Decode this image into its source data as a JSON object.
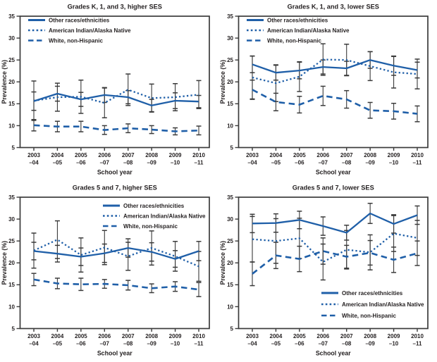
{
  "colors": {
    "series_blue": "#1F5FA8",
    "error_bar": "#3A3A3A",
    "frame": "#3B3B3B",
    "text": "#231F20",
    "background": "#FFFFFF"
  },
  "legend": {
    "items": [
      {
        "label": "Other races/ethnicities",
        "style": "solid"
      },
      {
        "label": "American Indian/Alaska Native",
        "style": "dotted"
      },
      {
        "label": "White, non-Hispanic",
        "style": "dashed"
      }
    ]
  },
  "axis": {
    "y_label": "Prevalence (%)",
    "x_label": "School year",
    "y_ticks": [
      5,
      10,
      15,
      20,
      25,
      30,
      35
    ],
    "ylim": [
      5,
      35
    ]
  },
  "chart_data": [
    {
      "type": "line",
      "title": "Grades K, 1, and 3, higher SES",
      "xlabel": "School year",
      "ylabel": "Prevalence (%)",
      "ylim": [
        5,
        35
      ],
      "grid": false,
      "legend_pos": "top-left",
      "categories": [
        "2003–04",
        "2004–05",
        "2005–06",
        "2006–07",
        "2007–08",
        "2008–09",
        "2009–10",
        "2010–11"
      ],
      "series": [
        {
          "name": "Other races/ethnicities",
          "id": "other-races",
          "style": "solid",
          "values": [
            15.6,
            17.3,
            16.0,
            17.0,
            16.5,
            14.6,
            15.7,
            15.5
          ],
          "err": [
            2.1,
            1.7,
            1.6,
            1.7,
            1.5,
            1.4,
            1.8,
            1.4
          ]
        },
        {
          "name": "American Indian/Alaska Native",
          "id": "ai-an",
          "style": "dotted",
          "values": [
            15.7,
            16.5,
            16.6,
            15.2,
            18.2,
            16.3,
            16.5,
            17.1
          ],
          "err": [
            4.5,
            3.2,
            3.8,
            3.4,
            3.6,
            3.2,
            3.1,
            3.2
          ]
        },
        {
          "name": "White, non-Hispanic",
          "id": "white-nh",
          "style": "dashed",
          "values": [
            10.1,
            9.8,
            9.8,
            9.0,
            9.4,
            9.1,
            8.7,
            8.9
          ],
          "err": [
            1.3,
            1.2,
            1.2,
            1.0,
            1.0,
            0.9,
            0.8,
            1.0
          ]
        }
      ]
    },
    {
      "type": "line",
      "title": "Grades K, 1, and 3, lower SES",
      "xlabel": "School year",
      "ylabel": "Prevalence (%)",
      "ylim": [
        5,
        35
      ],
      "grid": false,
      "legend_pos": "top-left",
      "categories": [
        "2003–04",
        "2004–05",
        "2005–06",
        "2006–07",
        "2007–08",
        "2008–09",
        "2009–10",
        "2010–11"
      ],
      "series": [
        {
          "name": "Other races/ethnicities",
          "id": "other-races",
          "style": "solid",
          "values": [
            24.0,
            22.1,
            22.6,
            23.4,
            23.1,
            25.0,
            23.7,
            22.7
          ],
          "err": [
            1.9,
            1.7,
            1.9,
            1.6,
            1.6,
            1.9,
            2.2,
            1.8
          ]
        },
        {
          "name": "American Indian/Alaska Native",
          "id": "ai-an",
          "style": "dotted",
          "values": [
            21.0,
            19.7,
            21.2,
            25.1,
            25.0,
            23.6,
            22.2,
            21.8
          ],
          "err": [
            4.9,
            4.2,
            3.4,
            3.6,
            3.6,
            3.3,
            3.6,
            3.4
          ]
        },
        {
          "name": "White, non-Hispanic",
          "id": "white-nh",
          "style": "dashed",
          "values": [
            18.2,
            15.4,
            14.8,
            16.8,
            16.0,
            13.5,
            13.3,
            12.7
          ],
          "err": [
            2.2,
            2.0,
            1.9,
            2.2,
            2.0,
            1.8,
            1.8,
            1.8
          ]
        }
      ]
    },
    {
      "type": "line",
      "title": "Grades 5 and 7, higher SES",
      "xlabel": "School year",
      "ylabel": "Prevalence (%)",
      "ylim": [
        5,
        35
      ],
      "grid": false,
      "legend_pos": "top-right",
      "categories": [
        "2003–04",
        "2004–05",
        "2005–06",
        "2006–07",
        "2007–08",
        "2008–09",
        "2009–10",
        "2010–11"
      ],
      "series": [
        {
          "name": "Other races/ethnicities",
          "id": "other-races",
          "style": "solid",
          "values": [
            22.7,
            22.1,
            21.4,
            22.2,
            23.4,
            22.5,
            20.9,
            22.7
          ],
          "err": [
            2.0,
            1.9,
            2.0,
            2.1,
            2.1,
            2.1,
            1.9,
            2.2
          ]
        },
        {
          "name": "American Indian/Alaska Native",
          "id": "ai-an",
          "style": "dotted",
          "values": [
            22.8,
            25.3,
            21.8,
            23.5,
            21.5,
            23.4,
            21.5,
            19.2
          ],
          "err": [
            4.0,
            4.3,
            3.9,
            3.9,
            3.2,
            3.9,
            3.4,
            3.4
          ]
        },
        {
          "name": "White, non-Hispanic",
          "id": "white-nh",
          "style": "dashed",
          "values": [
            16.2,
            15.3,
            15.1,
            15.2,
            14.9,
            14.2,
            14.6,
            13.9
          ],
          "err": [
            1.4,
            1.2,
            1.4,
            1.0,
            1.1,
            1.0,
            1.1,
            1.6
          ]
        }
      ]
    },
    {
      "type": "line",
      "title": "Grades 5 and 7, lower SES",
      "xlabel": "School year",
      "ylabel": "Prevalence (%)",
      "ylim": [
        5,
        35
      ],
      "grid": false,
      "legend_pos": "bottom-right",
      "categories": [
        "2003–04",
        "2004–05",
        "2005–06",
        "2006–07",
        "2007–08",
        "2008–09",
        "2009–10",
        "2010–11"
      ],
      "series": [
        {
          "name": "Other races/ethnicities",
          "id": "other-races",
          "style": "solid",
          "values": [
            29.0,
            29.1,
            29.8,
            28.4,
            26.9,
            31.3,
            28.9,
            30.9
          ],
          "err": [
            2.1,
            2.1,
            2.0,
            2.1,
            1.7,
            2.3,
            2.1,
            2.1
          ]
        },
        {
          "name": "American Indian/Alaska Native",
          "id": "ai-an",
          "style": "dotted",
          "values": [
            25.4,
            25.0,
            25.6,
            20.2,
            23.0,
            22.4,
            26.7,
            25.7
          ],
          "err": [
            5.2,
            5.1,
            4.6,
            4.1,
            4.4,
            4.0,
            4.1,
            4.0
          ]
        },
        {
          "name": "White, non-Hispanic",
          "id": "white-nh",
          "style": "dashed",
          "values": [
            17.5,
            21.7,
            20.9,
            22.7,
            21.4,
            22.3,
            20.7,
            22.2
          ],
          "err": [
            2.7,
            3.0,
            2.9,
            3.0,
            2.6,
            2.8,
            2.9,
            2.8
          ]
        }
      ]
    }
  ]
}
